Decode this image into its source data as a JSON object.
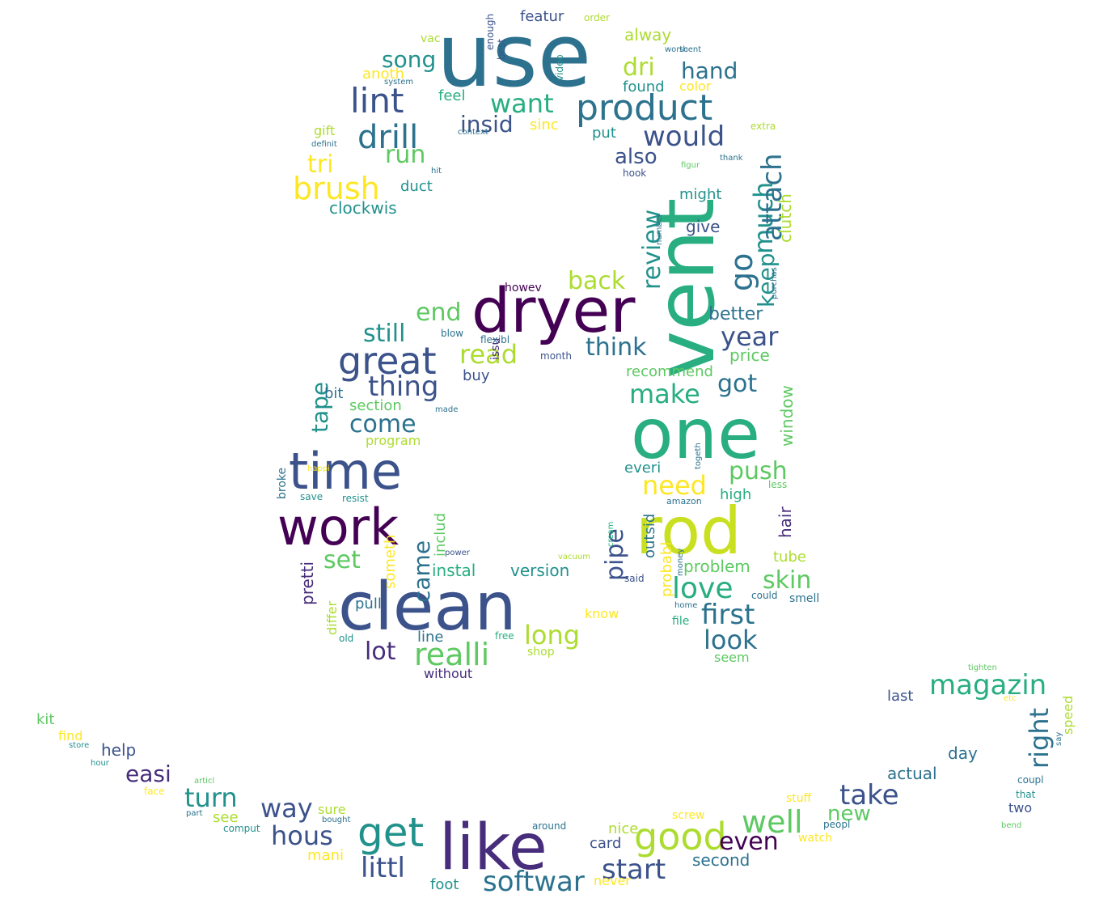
{
  "title": "",
  "palette": [
    "#440154",
    "#472d7b",
    "#3b528b",
    "#2c728e",
    "#21918c",
    "#28ae80",
    "#5ec962",
    "#addc30",
    "#fde725"
  ],
  "words": [
    {
      "text": "use",
      "color": "#2c728e"
    },
    {
      "text": "vent",
      "color": "#28ae80"
    },
    {
      "text": "dryer",
      "color": "#440154"
    },
    {
      "text": "one",
      "color": "#28ae80"
    },
    {
      "text": "rod",
      "color": "#c8e020"
    },
    {
      "text": "clean",
      "color": "#3b528b"
    },
    {
      "text": "like",
      "color": "#472d7b"
    },
    {
      "text": "work",
      "color": "#440154"
    },
    {
      "text": "time",
      "color": "#3b528b"
    },
    {
      "text": "product",
      "color": "#2c728e"
    },
    {
      "text": "great",
      "color": "#3b528b"
    },
    {
      "text": "get",
      "color": "#21918c"
    },
    {
      "text": "good",
      "color": "#addc30"
    },
    {
      "text": "well",
      "color": "#5ec962"
    },
    {
      "text": "realli",
      "color": "#5ec962"
    },
    {
      "text": "drill",
      "color": "#2c728e"
    },
    {
      "text": "lint",
      "color": "#3b528b"
    },
    {
      "text": "brush",
      "color": "#fde725"
    },
    {
      "text": "magazin",
      "color": "#28ae80"
    },
    {
      "text": "softwar",
      "color": "#2c728e"
    },
    {
      "text": "start",
      "color": "#3b528b"
    },
    {
      "text": "littl",
      "color": "#3b528b"
    },
    {
      "text": "take",
      "color": "#3b528b"
    },
    {
      "text": "hous",
      "color": "#3b528b"
    },
    {
      "text": "turn",
      "color": "#21918c"
    },
    {
      "text": "thing",
      "color": "#3b528b"
    },
    {
      "text": "first",
      "color": "#2c728e"
    },
    {
      "text": "love",
      "color": "#28ae80"
    },
    {
      "text": "skin",
      "color": "#5ec962"
    },
    {
      "text": "look",
      "color": "#2c728e"
    },
    {
      "text": "would",
      "color": "#3b528b"
    },
    {
      "text": "go",
      "color": "#2c728e"
    },
    {
      "text": "much",
      "color": "#21918c"
    },
    {
      "text": "attach",
      "color": "#2c728e"
    },
    {
      "text": "keep",
      "color": "#21918c"
    },
    {
      "text": "review",
      "color": "#21918c"
    },
    {
      "text": "think",
      "color": "#2c728e"
    },
    {
      "text": "year",
      "color": "#3b528b"
    },
    {
      "text": "make",
      "color": "#28ae80"
    },
    {
      "text": "got",
      "color": "#2c728e"
    },
    {
      "text": "push",
      "color": "#5ec962"
    },
    {
      "text": "need",
      "color": "#fde725"
    },
    {
      "text": "come",
      "color": "#2c728e"
    },
    {
      "text": "still",
      "color": "#21918c"
    },
    {
      "text": "read",
      "color": "#addc30"
    },
    {
      "text": "end",
      "color": "#5ec962"
    },
    {
      "text": "back",
      "color": "#addc30"
    },
    {
      "text": "want",
      "color": "#28ae80"
    },
    {
      "text": "song",
      "color": "#21918c"
    },
    {
      "text": "hand",
      "color": "#2c728e"
    },
    {
      "text": "dri",
      "color": "#addc30"
    },
    {
      "text": "run",
      "color": "#5ec962"
    },
    {
      "text": "tri",
      "color": "#fde725"
    },
    {
      "text": "insid",
      "color": "#3b528b"
    },
    {
      "text": "also",
      "color": "#3b528b"
    },
    {
      "text": "lot",
      "color": "#472d7b"
    },
    {
      "text": "long",
      "color": "#addc30"
    },
    {
      "text": "pipe",
      "color": "#3b528b"
    },
    {
      "text": "set",
      "color": "#5ec962"
    },
    {
      "text": "tape",
      "color": "#21918c"
    },
    {
      "text": "way",
      "color": "#3b528b"
    },
    {
      "text": "even",
      "color": "#440154"
    },
    {
      "text": "easi",
      "color": "#472d7b"
    },
    {
      "text": "right",
      "color": "#2c728e"
    },
    {
      "text": "new",
      "color": "#5ec962"
    },
    {
      "text": "came",
      "color": "#2c728e"
    },
    {
      "text": "better",
      "color": "#2c728e"
    },
    {
      "text": "featur",
      "color": "#3b528b"
    },
    {
      "text": "alway",
      "color": "#addc30"
    },
    {
      "text": "anoth",
      "color": "#fde725"
    },
    {
      "text": "feel",
      "color": "#28ae80"
    },
    {
      "text": "duct",
      "color": "#21918c"
    },
    {
      "text": "clockwis",
      "color": "#21918c"
    },
    {
      "text": "price",
      "color": "#5ec962"
    },
    {
      "text": "buy",
      "color": "#3b528b"
    },
    {
      "text": "bit",
      "color": "#2c728e"
    },
    {
      "text": "section",
      "color": "#5ec962"
    },
    {
      "text": "recommend",
      "color": "#5ec962"
    },
    {
      "text": "everi",
      "color": "#21918c"
    },
    {
      "text": "high",
      "color": "#28ae80"
    },
    {
      "text": "window",
      "color": "#5ec962"
    },
    {
      "text": "clutch",
      "color": "#addc30"
    },
    {
      "text": "give",
      "color": "#3b528b"
    },
    {
      "text": "might",
      "color": "#21918c"
    },
    {
      "text": "color",
      "color": "#fde725"
    },
    {
      "text": "found",
      "color": "#21918c"
    },
    {
      "text": "sinc",
      "color": "#fde725"
    },
    {
      "text": "put",
      "color": "#21918c"
    },
    {
      "text": "gift",
      "color": "#addc30"
    },
    {
      "text": "instal",
      "color": "#28ae80"
    },
    {
      "text": "version",
      "color": "#21918c"
    },
    {
      "text": "pull",
      "color": "#2c728e"
    },
    {
      "text": "line",
      "color": "#2c728e"
    },
    {
      "text": "without",
      "color": "#472d7b"
    },
    {
      "text": "problem",
      "color": "#5ec962"
    },
    {
      "text": "tube",
      "color": "#addc30"
    },
    {
      "text": "hair",
      "color": "#472d7b"
    },
    {
      "text": "smell",
      "color": "#2c728e"
    },
    {
      "text": "outsid",
      "color": "#2c728e"
    },
    {
      "text": "probabl",
      "color": "#fde725"
    },
    {
      "text": "includ",
      "color": "#5ec962"
    },
    {
      "text": "pretti",
      "color": "#472d7b"
    },
    {
      "text": "differ",
      "color": "#addc30"
    },
    {
      "text": "someth",
      "color": "#fde725"
    },
    {
      "text": "program",
      "color": "#addc30"
    },
    {
      "text": "know",
      "color": "#fde725"
    },
    {
      "text": "seem",
      "color": "#5ec962"
    },
    {
      "text": "shop",
      "color": "#addc30"
    },
    {
      "text": "free",
      "color": "#28ae80"
    },
    {
      "text": "help",
      "color": "#3b528b"
    },
    {
      "text": "find",
      "color": "#fde725"
    },
    {
      "text": "kit",
      "color": "#5ec962"
    },
    {
      "text": "see",
      "color": "#addc30"
    },
    {
      "text": "sure",
      "color": "#addc30"
    },
    {
      "text": "mani",
      "color": "#fde725"
    },
    {
      "text": "foot",
      "color": "#21918c"
    },
    {
      "text": "never",
      "color": "#fde725"
    },
    {
      "text": "card",
      "color": "#3b528b"
    },
    {
      "text": "nice",
      "color": "#addc30"
    },
    {
      "text": "second",
      "color": "#2c728e"
    },
    {
      "text": "actual",
      "color": "#2c728e"
    },
    {
      "text": "day",
      "color": "#2c728e"
    },
    {
      "text": "last",
      "color": "#3b528b"
    },
    {
      "text": "two",
      "color": "#3b528b"
    },
    {
      "text": "speed",
      "color": "#addc30"
    },
    {
      "text": "broke",
      "color": "#2c728e"
    },
    {
      "text": "save",
      "color": "#21918c"
    },
    {
      "text": "resist",
      "color": "#21918c"
    },
    {
      "text": "happi",
      "color": "#fde725"
    },
    {
      "text": "old",
      "color": "#21918c"
    },
    {
      "text": "togeth",
      "color": "#2c728e"
    },
    {
      "text": "amazon",
      "color": "#2c728e"
    },
    {
      "text": "less",
      "color": "#5ec962"
    },
    {
      "text": "howev",
      "color": "#440154"
    },
    {
      "text": "issu",
      "color": "#472d7b"
    },
    {
      "text": "month",
      "color": "#3b528b"
    },
    {
      "text": "flexibl",
      "color": "#2c728e"
    },
    {
      "text": "blow",
      "color": "#2c728e"
    },
    {
      "text": "made",
      "color": "#2c728e"
    },
    {
      "text": "file",
      "color": "#28ae80"
    },
    {
      "text": "home",
      "color": "#2c728e"
    },
    {
      "text": "said",
      "color": "#3b528b"
    },
    {
      "text": "money",
      "color": "#2c728e"
    },
    {
      "text": "could",
      "color": "#2c728e"
    },
    {
      "text": "cream",
      "color": "#28ae80"
    },
    {
      "text": "vacuum",
      "color": "#addc30"
    },
    {
      "text": "power",
      "color": "#3b528b"
    },
    {
      "text": "order",
      "color": "#addc30"
    },
    {
      "text": "vac",
      "color": "#addc30"
    },
    {
      "text": "best",
      "color": "#3b528b"
    },
    {
      "text": "enough",
      "color": "#3b528b"
    },
    {
      "text": "video",
      "color": "#21918c"
    },
    {
      "text": "worth",
      "color": "#2c728e"
    },
    {
      "text": "scent",
      "color": "#2c728e"
    },
    {
      "text": "system",
      "color": "#2c728e"
    },
    {
      "text": "extra",
      "color": "#addc30"
    },
    {
      "text": "thank",
      "color": "#2c728e"
    },
    {
      "text": "hook",
      "color": "#3b528b"
    },
    {
      "text": "figur",
      "color": "#5ec962"
    },
    {
      "text": "definit",
      "color": "#2c728e"
    },
    {
      "text": "context",
      "color": "#2c728e"
    },
    {
      "text": "hit",
      "color": "#2c728e"
    },
    {
      "text": "number",
      "color": "#2c728e"
    },
    {
      "text": "purchas",
      "color": "#2c728e"
    },
    {
      "text": "articl",
      "color": "#5ec962"
    },
    {
      "text": "face",
      "color": "#fde725"
    },
    {
      "text": "store",
      "color": "#21918c"
    },
    {
      "text": "hour",
      "color": "#21918c"
    },
    {
      "text": "part",
      "color": "#2c728e"
    },
    {
      "text": "bought",
      "color": "#2c728e"
    },
    {
      "text": "comput",
      "color": "#21918c"
    },
    {
      "text": "around",
      "color": "#2c728e"
    },
    {
      "text": "screw",
      "color": "#fde725"
    },
    {
      "text": "stuff",
      "color": "#fde725"
    },
    {
      "text": "peopl",
      "color": "#2c728e"
    },
    {
      "text": "watch",
      "color": "#fde725"
    },
    {
      "text": "tighten",
      "color": "#5ec962"
    },
    {
      "text": "coupl",
      "color": "#2c728e"
    },
    {
      "text": "that",
      "color": "#21918c"
    },
    {
      "text": "bend",
      "color": "#5ec962"
    },
    {
      "text": "say",
      "color": "#2c728e"
    },
    {
      "text": "etc",
      "color": "#fde725"
    }
  ]
}
